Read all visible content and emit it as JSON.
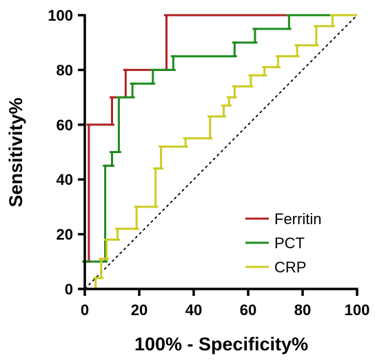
{
  "chart_data": {
    "type": "line",
    "title": "",
    "xlabel": "100% - Specificity%",
    "ylabel": "Sensitivity%",
    "xlim": [
      0,
      100
    ],
    "ylim": [
      0,
      100
    ],
    "x_ticks": [
      "0",
      "20",
      "40",
      "60",
      "80",
      "100"
    ],
    "y_ticks": [
      "0",
      "20",
      "40",
      "60",
      "80",
      "100"
    ],
    "grid": false,
    "legend_position": "bottom-right",
    "reference_line": {
      "style": "dashed",
      "from": [
        0,
        0
      ],
      "to": [
        100,
        100
      ]
    },
    "series": [
      {
        "name": "Ferritin",
        "color": "#B22222",
        "points": [
          [
            0,
            0
          ],
          [
            0,
            10
          ],
          [
            1.5,
            10
          ],
          [
            1.5,
            60
          ],
          [
            10,
            60
          ],
          [
            10,
            70
          ],
          [
            15,
            70
          ],
          [
            15,
            80
          ],
          [
            30,
            80
          ],
          [
            30,
            100
          ],
          [
            100,
            100
          ]
        ]
      },
      {
        "name": "PCT",
        "color": "#1E8C1E",
        "points": [
          [
            0,
            0
          ],
          [
            0,
            10
          ],
          [
            7.5,
            10
          ],
          [
            7.5,
            45
          ],
          [
            10,
            45
          ],
          [
            10,
            50
          ],
          [
            12.5,
            50
          ],
          [
            12.5,
            70
          ],
          [
            17.5,
            70
          ],
          [
            17.5,
            75
          ],
          [
            25,
            75
          ],
          [
            25,
            80
          ],
          [
            32.5,
            80
          ],
          [
            32.5,
            85
          ],
          [
            55,
            85
          ],
          [
            55,
            90
          ],
          [
            62.5,
            90
          ],
          [
            62.5,
            95
          ],
          [
            75,
            95
          ],
          [
            75,
            100
          ],
          [
            100,
            100
          ]
        ]
      },
      {
        "name": "CRP",
        "color": "#CCCC22",
        "points": [
          [
            0,
            0
          ],
          [
            4,
            0
          ],
          [
            4,
            4
          ],
          [
            6,
            4
          ],
          [
            6,
            11
          ],
          [
            8,
            11
          ],
          [
            8,
            18
          ],
          [
            12,
            18
          ],
          [
            12,
            22
          ],
          [
            19,
            22
          ],
          [
            19,
            30
          ],
          [
            26,
            30
          ],
          [
            26,
            44
          ],
          [
            28,
            44
          ],
          [
            28,
            52
          ],
          [
            37,
            52
          ],
          [
            37,
            55
          ],
          [
            46,
            55
          ],
          [
            46,
            63
          ],
          [
            51,
            63
          ],
          [
            51,
            67
          ],
          [
            53,
            67
          ],
          [
            53,
            70
          ],
          [
            55,
            70
          ],
          [
            55,
            74
          ],
          [
            61,
            74
          ],
          [
            61,
            78
          ],
          [
            66,
            78
          ],
          [
            66,
            81
          ],
          [
            71,
            81
          ],
          [
            71,
            85
          ],
          [
            78,
            85
          ],
          [
            78,
            89
          ],
          [
            85,
            89
          ],
          [
            85,
            96
          ],
          [
            91,
            96
          ],
          [
            91,
            100
          ],
          [
            100,
            100
          ]
        ]
      }
    ]
  }
}
